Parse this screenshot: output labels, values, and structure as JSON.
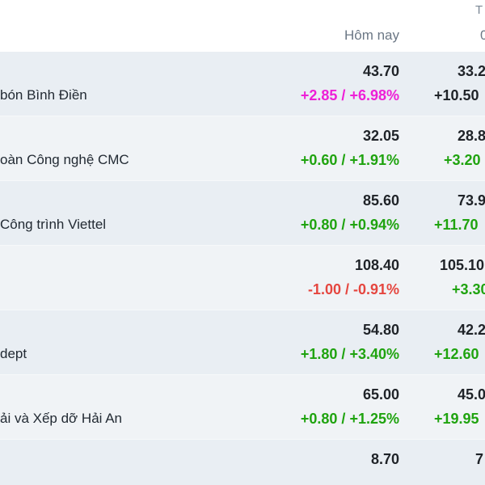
{
  "header": {
    "top_clip": "T",
    "col_today": "Hôm nay",
    "col_next": "0"
  },
  "colors": {
    "up": "#1fa30f",
    "down": "#e5463f",
    "ceiling": "#ee1fd7",
    "row_bg": "#e9eef3",
    "row_bg_alt": "#f0f3f6"
  },
  "rows": [
    {
      "name": "bón Bình Điền",
      "price": "43.70",
      "change": "+2.85 / +6.98%",
      "status": "ceiling",
      "price2": "33.2",
      "change2": "+10.50"
    },
    {
      "name": "oàn Công nghệ CMC",
      "price": "32.05",
      "change": "+0.60 / +1.91%",
      "status": "up",
      "price2": "28.8",
      "change2": "+3.20"
    },
    {
      "name": "Công trình Viettel",
      "price": "85.60",
      "change": "+0.80 / +0.94%",
      "status": "up",
      "price2": "73.9",
      "change2": "+11.70"
    },
    {
      "name": "",
      "price": "108.40",
      "change": "-1.00 / -0.91%",
      "status": "down",
      "price2": "105.10",
      "change2": "+3.30"
    },
    {
      "name": "dept",
      "price": "54.80",
      "change": "+1.80 / +3.40%",
      "status": "up",
      "price2": "42.2",
      "change2": "+12.60"
    },
    {
      "name": "ải và Xếp dỡ Hải An",
      "price": "65.00",
      "change": "+0.80 / +1.25%",
      "status": "up",
      "price2": "45.0",
      "change2": "+19.95"
    },
    {
      "name": "",
      "price": "8.70",
      "change": "",
      "status": "up",
      "price2": "7",
      "change2": ""
    }
  ]
}
